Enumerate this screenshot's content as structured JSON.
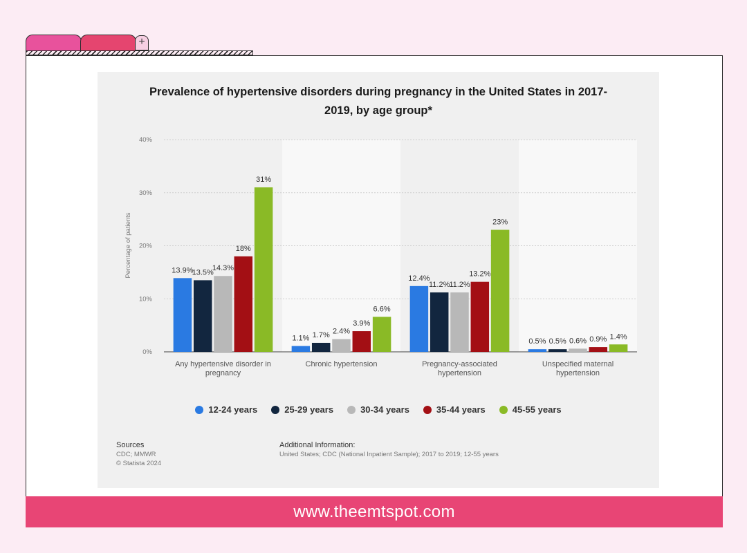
{
  "browser": {
    "add_tab_symbol": "+"
  },
  "footer": {
    "url": "www.theemtspot.com"
  },
  "sources": {
    "heading": "Sources",
    "lines": [
      "CDC; MMWR",
      "© Statista 2024"
    ]
  },
  "additional": {
    "heading": "Additional Information:",
    "text": "United States; CDC (National Inpatient Sample); 2017 to 2019; 12-55 years"
  },
  "chart_data": {
    "type": "bar",
    "title_lines": [
      "Prevalence of hypertensive disorders during pregnancy in the United States in 2017-",
      "2019, by age group*"
    ],
    "ylabel": "Percentage of patients",
    "ylim": [
      0,
      40
    ],
    "yticks": [
      "0%",
      "10%",
      "20%",
      "30%",
      "40%"
    ],
    "categories": [
      [
        "Any hypertensive disorder in",
        "pregnancy"
      ],
      [
        "Chronic hypertension"
      ],
      [
        "Pregnancy-associated",
        "hypertension"
      ],
      [
        "Unspecified maternal",
        "hypertension"
      ]
    ],
    "series": [
      {
        "name": "12-24 years",
        "color": "#2a7ae2",
        "values": [
          13.9,
          1.1,
          12.4,
          0.5
        ],
        "labels": [
          "13.9%",
          "1.1%",
          "12.4%",
          "0.5%"
        ]
      },
      {
        "name": "25-29 years",
        "color": "#12263f",
        "values": [
          13.5,
          1.7,
          11.2,
          0.5
        ],
        "labels": [
          "13.5%",
          "1.7%",
          "11.2%",
          "0.5%"
        ]
      },
      {
        "name": "30-34 years",
        "color": "#b8b8b8",
        "values": [
          14.3,
          2.4,
          11.2,
          0.6
        ],
        "labels": [
          "14.3%",
          "2.4%",
          "11.2%",
          "0.6%"
        ]
      },
      {
        "name": "35-44 years",
        "color": "#a30f14",
        "values": [
          18,
          3.9,
          13.2,
          0.9
        ],
        "labels": [
          "18%",
          "3.9%",
          "13.2%",
          "0.9%"
        ]
      },
      {
        "name": "45-55 years",
        "color": "#8aba26",
        "values": [
          31,
          6.6,
          23,
          1.4
        ],
        "labels": [
          "31%",
          "6.6%",
          "23%",
          "1.4%"
        ]
      }
    ],
    "grid": true,
    "legend": "bottom"
  }
}
